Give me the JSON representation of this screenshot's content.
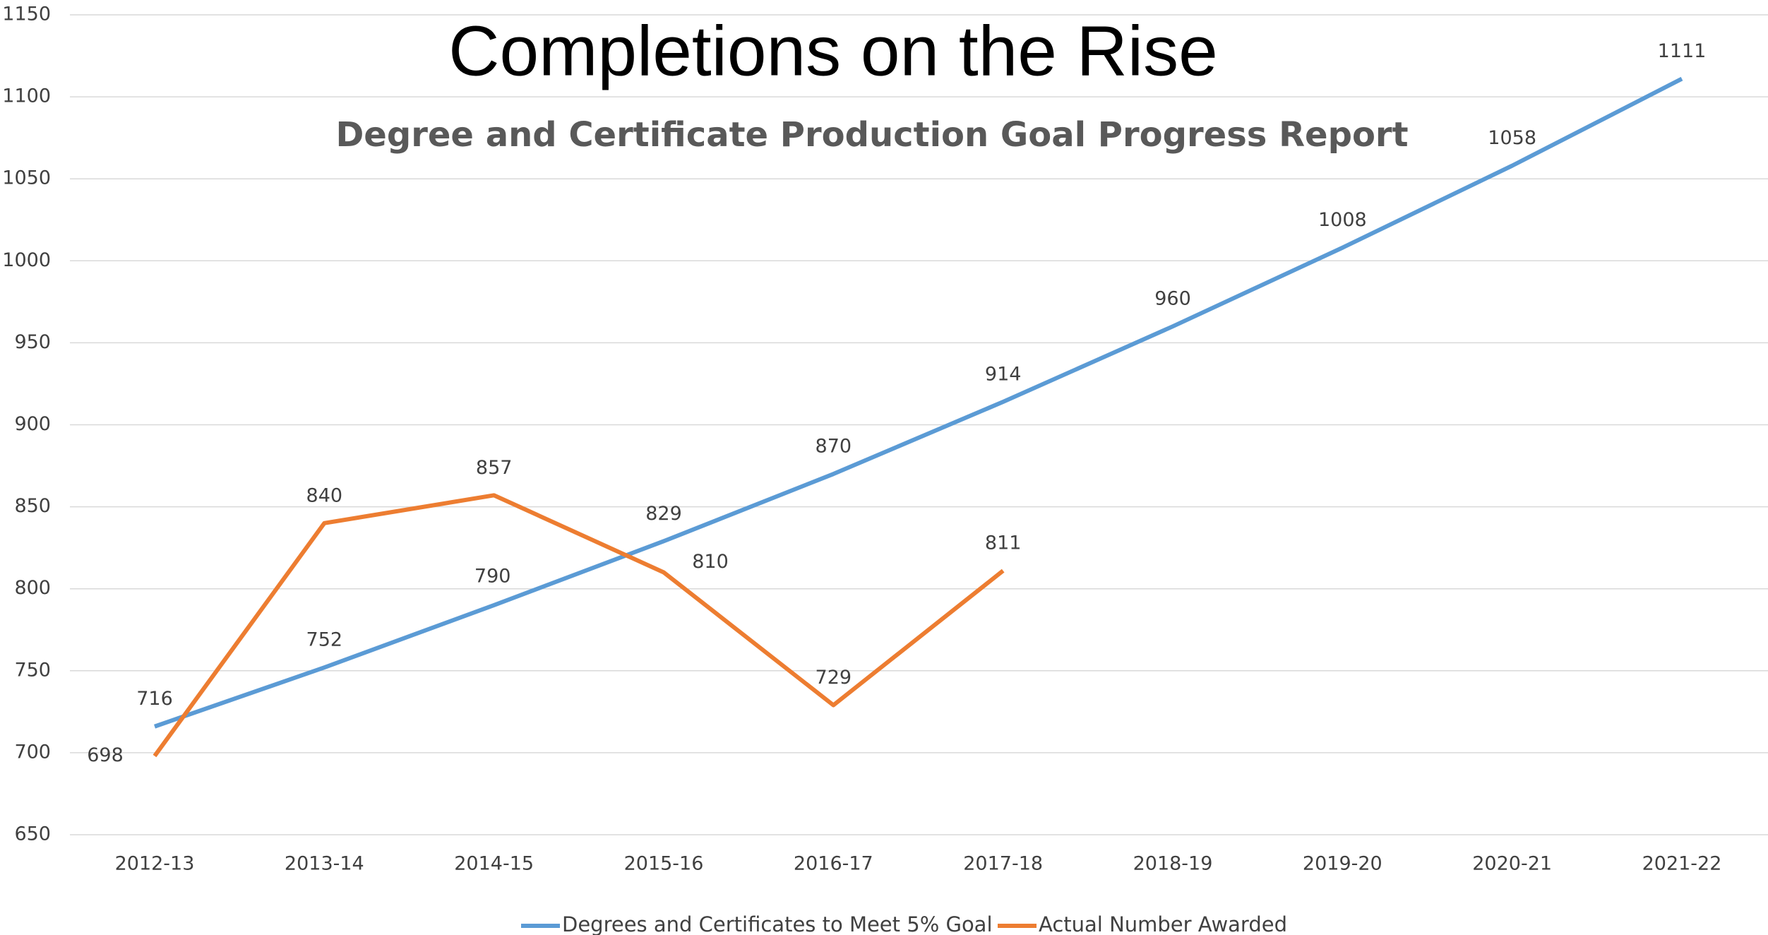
{
  "chart_data": {
    "type": "line",
    "title": "Completions on the Rise",
    "subtitle": "Degree and Certificate Production Goal Progress Report",
    "categories": [
      "2012-13",
      "2013-14",
      "2014-15",
      "2015-16",
      "2016-17",
      "2017-18",
      "2018-19",
      "2019-20",
      "2020-21",
      "2021-22"
    ],
    "series": [
      {
        "name": "Degrees and Certificates to Meet 5% Goal",
        "color": "#5b9bd5",
        "values": [
          716,
          752,
          790,
          829,
          870,
          914,
          960,
          1008,
          1058,
          1111
        ]
      },
      {
        "name": "Actual Number Awarded",
        "color": "#ed7d31",
        "values": [
          698,
          840,
          857,
          810,
          729,
          811,
          null,
          null,
          null,
          null
        ]
      }
    ],
    "ylim": [
      650,
      1150
    ],
    "yticks": [
      650,
      700,
      750,
      800,
      850,
      900,
      950,
      1000,
      1050,
      1100,
      1150
    ],
    "grid": true,
    "legend": "bottom"
  }
}
